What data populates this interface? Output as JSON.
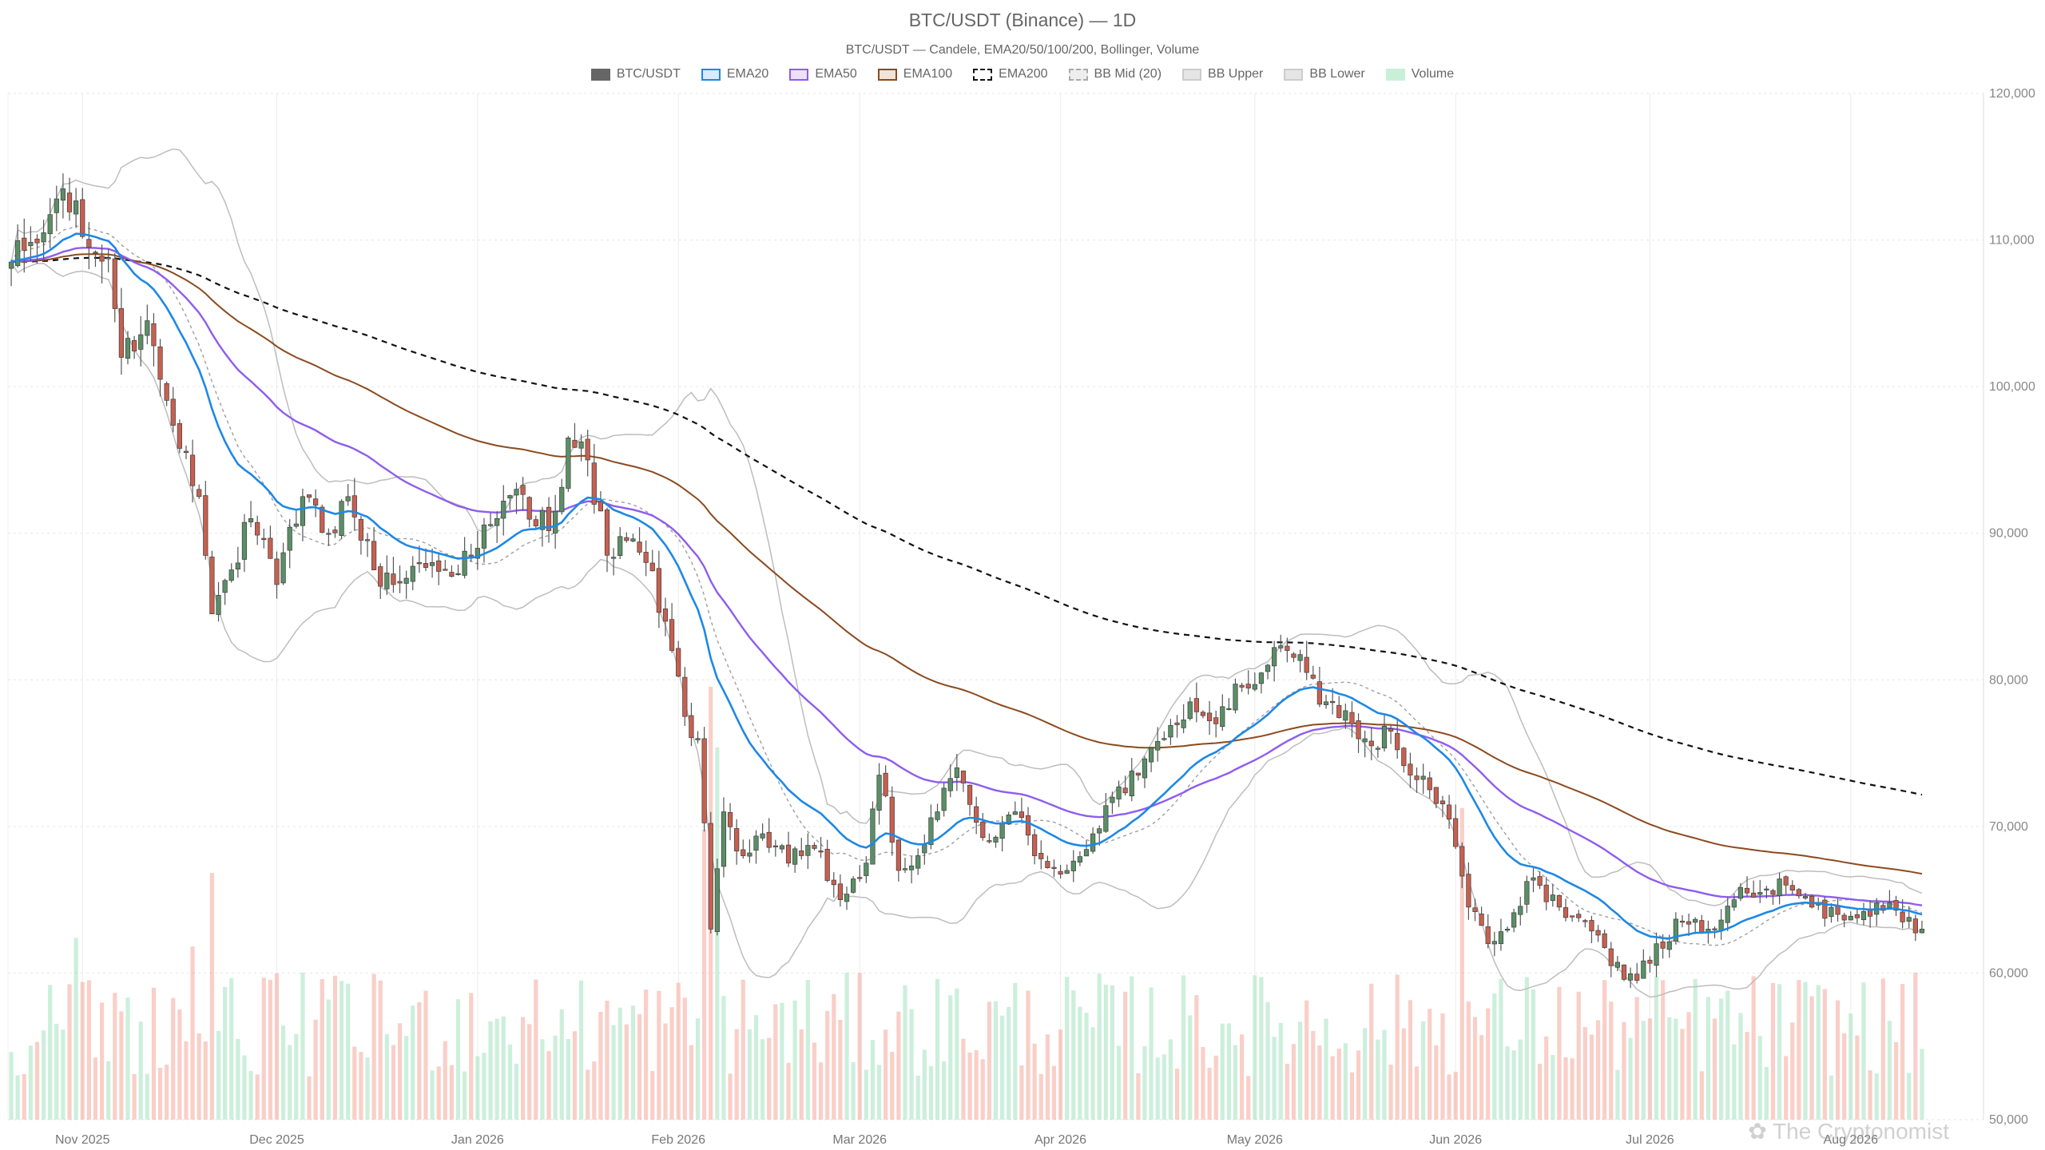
{
  "chart_data": {
    "type": "candlestick",
    "title": "BTC/USDT (Binance) — 1D",
    "subtitle": "BTC/USDT — Candele, EMA20/50/100/200, Bollinger, Volume",
    "legend": [
      {
        "name": "BTC/USDT",
        "fill": "#666666",
        "stroke": "#666666",
        "dash": false
      },
      {
        "name": "EMA20",
        "fill": "#dbe9f8",
        "stroke": "#1e88e5",
        "dash": false
      },
      {
        "name": "EMA50",
        "fill": "#ece2fb",
        "stroke": "#8e5cf0",
        "dash": false
      },
      {
        "name": "EMA100",
        "fill": "#f1e3d7",
        "stroke": "#8b4a1e",
        "dash": false
      },
      {
        "name": "EMA200",
        "fill": "#ffffff",
        "stroke": "#111111",
        "dash": true
      },
      {
        "name": "BB Mid (20)",
        "fill": "#eeeeee",
        "stroke": "#aaaaaa",
        "dash": true
      },
      {
        "name": "BB Upper",
        "fill": "#e5e5e5",
        "stroke": "#cccccc",
        "dash": false
      },
      {
        "name": "BB Lower",
        "fill": "#e5e5e5",
        "stroke": "#cccccc",
        "dash": false
      },
      {
        "name": "Volume",
        "fill": "#c9efd9",
        "stroke": "#c9efd9",
        "dash": false
      }
    ],
    "y_axis": {
      "min": 50000,
      "max": 120000,
      "position": "right",
      "ticks": [
        "120,000",
        "110,000",
        "100,000",
        "90,000",
        "80,000",
        "70,000",
        "60,000",
        "50,000"
      ]
    },
    "x_axis": {
      "start": "2025-10-21",
      "end": "2026-08-21",
      "labels": [
        {
          "date": "2025-11-01",
          "label": "Nov 2025"
        },
        {
          "date": "2025-12-01",
          "label": "Dec 2025"
        },
        {
          "date": "2026-01-01",
          "label": "Jan 2026"
        },
        {
          "date": "2026-02-01",
          "label": "Feb 2026"
        },
        {
          "date": "2026-03-01",
          "label": "Mar 2026"
        },
        {
          "date": "2026-04-01",
          "label": "Apr 2026"
        },
        {
          "date": "2026-05-01",
          "label": "May 2026"
        },
        {
          "date": "2026-06-01",
          "label": "Jun 2026"
        },
        {
          "date": "2026-07-01",
          "label": "Jul 2026"
        },
        {
          "date": "2026-08-01",
          "label": "Aug 2026"
        }
      ]
    },
    "close_anchors": [
      [
        "2025-10-21",
        108500
      ],
      [
        "2025-10-26",
        110500
      ],
      [
        "2025-10-29",
        113500
      ],
      [
        "2025-11-02",
        109500
      ],
      [
        "2025-11-05",
        108800
      ],
      [
        "2025-11-07",
        102000
      ],
      [
        "2025-11-11",
        104500
      ],
      [
        "2025-11-13",
        100500
      ],
      [
        "2025-11-17",
        95500
      ],
      [
        "2025-11-19",
        92500
      ],
      [
        "2025-11-21",
        84500
      ],
      [
        "2025-11-24",
        87500
      ],
      [
        "2025-11-27",
        91000
      ],
      [
        "2025-12-01",
        86500
      ],
      [
        "2025-12-05",
        92500
      ],
      [
        "2025-12-09",
        90000
      ],
      [
        "2025-12-12",
        92500
      ],
      [
        "2025-12-16",
        87500
      ],
      [
        "2025-12-19",
        86500
      ],
      [
        "2025-12-23",
        88000
      ],
      [
        "2025-12-27",
        87500
      ],
      [
        "2025-12-31",
        88500
      ],
      [
        "2026-01-04",
        91000
      ],
      [
        "2026-01-07",
        93000
      ],
      [
        "2026-01-10",
        90500
      ],
      [
        "2026-01-13",
        91500
      ],
      [
        "2026-01-15",
        96500
      ],
      [
        "2026-01-18",
        95000
      ],
      [
        "2026-01-21",
        88500
      ],
      [
        "2026-01-24",
        89500
      ],
      [
        "2026-01-27",
        88000
      ],
      [
        "2026-01-30",
        84000
      ],
      [
        "2026-02-02",
        77500
      ],
      [
        "2026-02-04",
        76000
      ],
      [
        "2026-02-06",
        63000
      ],
      [
        "2026-02-08",
        71000
      ],
      [
        "2026-02-11",
        68000
      ],
      [
        "2026-02-14",
        69500
      ],
      [
        "2026-02-18",
        67500
      ],
      [
        "2026-02-22",
        68500
      ],
      [
        "2026-02-26",
        65000
      ],
      [
        "2026-03-02",
        67500
      ],
      [
        "2026-03-04",
        73500
      ],
      [
        "2026-03-07",
        67000
      ],
      [
        "2026-03-10",
        68000
      ],
      [
        "2026-03-13",
        71000
      ],
      [
        "2026-03-16",
        74000
      ],
      [
        "2026-03-18",
        71500
      ],
      [
        "2026-03-21",
        69000
      ],
      [
        "2026-03-25",
        71000
      ],
      [
        "2026-03-28",
        68000
      ],
      [
        "2026-04-02",
        67000
      ],
      [
        "2026-04-06",
        69500
      ],
      [
        "2026-04-09",
        72000
      ],
      [
        "2026-04-13",
        73500
      ],
      [
        "2026-04-17",
        76000
      ],
      [
        "2026-04-21",
        78500
      ],
      [
        "2026-04-25",
        77000
      ],
      [
        "2026-04-29",
        79500
      ],
      [
        "2026-05-03",
        81000
      ],
      [
        "2026-05-06",
        82000
      ],
      [
        "2026-05-09",
        80500
      ],
      [
        "2026-05-12",
        78500
      ],
      [
        "2026-05-16",
        77000
      ],
      [
        "2026-05-19",
        75500
      ],
      [
        "2026-05-22",
        76500
      ],
      [
        "2026-05-25",
        73500
      ],
      [
        "2026-05-28",
        72500
      ],
      [
        "2026-05-31",
        70500
      ],
      [
        "2026-06-03",
        64500
      ],
      [
        "2026-06-06",
        62000
      ],
      [
        "2026-06-09",
        63000
      ],
      [
        "2026-06-13",
        66500
      ],
      [
        "2026-06-17",
        64500
      ],
      [
        "2026-06-21",
        63500
      ],
      [
        "2026-06-25",
        60500
      ],
      [
        "2026-06-29",
        59500
      ],
      [
        "2026-07-02",
        62000
      ],
      [
        "2026-07-06",
        63500
      ],
      [
        "2026-07-10",
        63000
      ],
      [
        "2026-07-14",
        65000
      ],
      [
        "2026-07-18",
        65500
      ],
      [
        "2026-07-22",
        66000
      ],
      [
        "2026-07-26",
        64500
      ],
      [
        "2026-07-30",
        64000
      ],
      [
        "2026-08-03",
        64200
      ],
      [
        "2026-08-07",
        64800
      ],
      [
        "2026-08-10",
        63800
      ],
      [
        "2026-08-12",
        63000
      ]
    ],
    "volume_spikes": [
      [
        "2026-02-06",
        1.0
      ],
      [
        "2026-02-07",
        0.86
      ],
      [
        "2026-02-05",
        0.67
      ],
      [
        "2026-06-02",
        0.72
      ],
      [
        "2025-11-21",
        0.57
      ],
      [
        "2025-10-31",
        0.42
      ],
      [
        "2025-11-18",
        0.4
      ]
    ],
    "grid": true,
    "legend_position": "top"
  },
  "watermark": "✿ The Cryptonomist"
}
